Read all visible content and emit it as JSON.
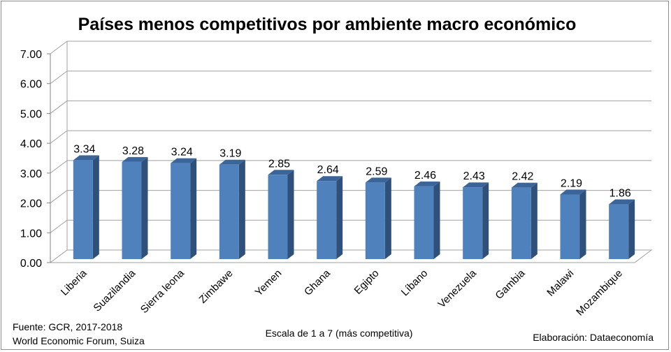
{
  "chart_data": {
    "type": "bar",
    "title": "Países menos competitivos por ambiente macro económico",
    "categories": [
      "Liberia",
      "Suazilandia",
      "Sierra leona",
      "Zimbawe",
      "Yemen",
      "Ghana",
      "Egipto",
      "Líbano",
      "Venezuela",
      "Gambia",
      "Malawi",
      "Mozambique"
    ],
    "values": [
      3.34,
      3.28,
      3.24,
      3.19,
      2.85,
      2.64,
      2.59,
      2.46,
      2.43,
      2.42,
      2.19,
      1.86
    ],
    "value_labels": [
      "3.34",
      "3.28",
      "3.24",
      "3.19",
      "2.85",
      "2.64",
      "2.59",
      "2.46",
      "2.43",
      "2.42",
      "2.19",
      "1.86"
    ],
    "ylim": [
      0,
      7
    ],
    "yticks": [
      "0.00",
      "1.00",
      "2.00",
      "3.00",
      "4.00",
      "5.00",
      "6.00",
      "7.00"
    ],
    "grid": true,
    "bar_color": "#4f81bd",
    "bar_side_color": "#2f507a",
    "bar_top_color": "#3b6598"
  },
  "footer": {
    "source_line1": "Fuente:  GCR, 2017-2018",
    "source_line2": "World Economic Forum, Suiza",
    "scale_note": "Escala de 1 a 7 (más competitiva)",
    "credit": "Elaboración: Dataeconomía"
  }
}
